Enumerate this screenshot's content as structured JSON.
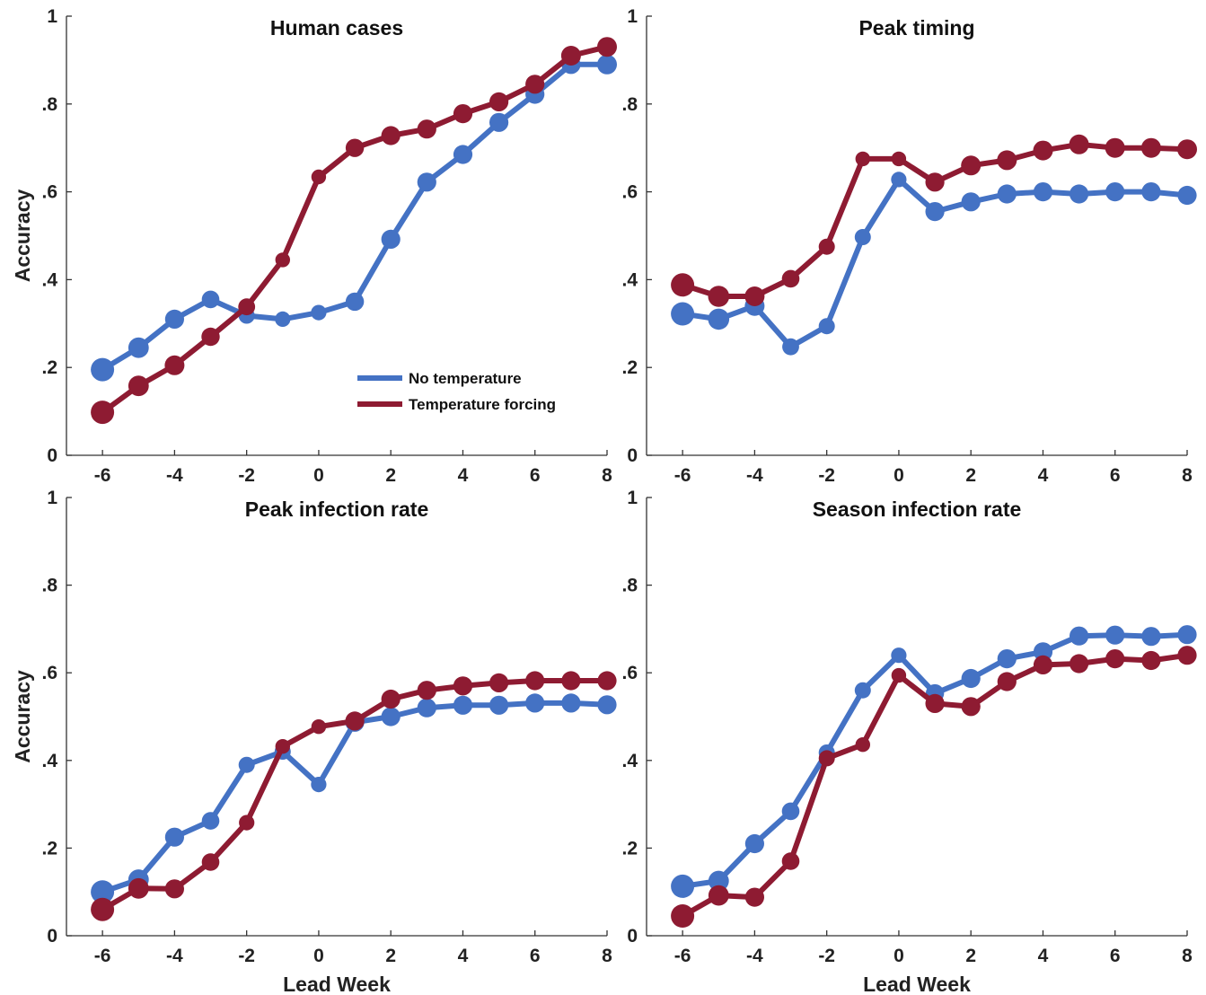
{
  "colors": {
    "no_temperature": "#4472C4",
    "temperature_forcing": "#8E1B32"
  },
  "chart_data": [
    {
      "type": "line",
      "title": "Human cases",
      "xlabel": "",
      "ylabel": "Accuracy",
      "x": [
        -6,
        -5,
        -4,
        -3,
        -2,
        -1,
        0,
        1,
        2,
        3,
        4,
        5,
        6,
        7,
        8
      ],
      "xlim": [
        -7,
        8
      ],
      "ylim": [
        0,
        1
      ],
      "xticks": [
        "-6",
        "-4",
        "-2",
        "0",
        "2",
        "4",
        "6",
        "8"
      ],
      "yticks": [
        "0",
        ".2",
        ".4",
        ".6",
        ".8",
        "1"
      ],
      "legend": "inside-lower-right",
      "series": [
        {
          "name": "No temperature",
          "color": "#4472C4",
          "values": [
            0.195,
            0.245,
            0.31,
            0.355,
            0.318,
            0.31,
            0.325,
            0.35,
            0.492,
            0.622,
            0.685,
            0.758,
            0.822,
            0.89,
            0.89
          ],
          "sizes": [
            1.0,
            0.8,
            0.7,
            0.6,
            0.5,
            0.45,
            0.45,
            0.65,
            0.7,
            0.7,
            0.7,
            0.7,
            0.7,
            0.7,
            0.75
          ]
        },
        {
          "name": "Temperature forcing",
          "color": "#8E1B32",
          "values": [
            0.098,
            0.158,
            0.205,
            0.27,
            0.338,
            0.445,
            0.634,
            0.7,
            0.728,
            0.743,
            0.778,
            0.805,
            0.845,
            0.91,
            0.93
          ],
          "sizes": [
            1.0,
            0.8,
            0.75,
            0.65,
            0.55,
            0.4,
            0.4,
            0.65,
            0.7,
            0.7,
            0.7,
            0.7,
            0.7,
            0.75,
            0.75
          ]
        }
      ]
    },
    {
      "type": "line",
      "title": "Peak timing",
      "xlabel": "",
      "ylabel": "",
      "x": [
        -6,
        -5,
        -4,
        -3,
        -2,
        -1,
        0,
        1,
        2,
        3,
        4,
        5,
        6,
        7,
        8
      ],
      "xlim": [
        -7,
        8
      ],
      "ylim": [
        0,
        1
      ],
      "xticks": [
        "-6",
        "-4",
        "-2",
        "0",
        "2",
        "4",
        "6",
        "8"
      ],
      "yticks": [
        "0",
        ".2",
        ".4",
        ".6",
        ".8",
        "1"
      ],
      "series": [
        {
          "name": "No temperature",
          "color": "#4472C4",
          "values": [
            0.322,
            0.31,
            0.34,
            0.247,
            0.294,
            0.497,
            0.628,
            0.555,
            0.577,
            0.595,
            0.6,
            0.595,
            0.6,
            0.6,
            0.592
          ],
          "sizes": [
            1.0,
            0.85,
            0.75,
            0.55,
            0.5,
            0.5,
            0.45,
            0.7,
            0.7,
            0.7,
            0.7,
            0.7,
            0.7,
            0.7,
            0.7
          ]
        },
        {
          "name": "Temperature forcing",
          "color": "#8E1B32",
          "values": [
            0.388,
            0.362,
            0.362,
            0.402,
            0.475,
            0.675,
            0.675,
            0.622,
            0.66,
            0.672,
            0.694,
            0.708,
            0.7,
            0.7,
            0.697
          ],
          "sizes": [
            1.0,
            0.85,
            0.75,
            0.6,
            0.5,
            0.4,
            0.4,
            0.7,
            0.75,
            0.75,
            0.75,
            0.75,
            0.75,
            0.75,
            0.75
          ]
        }
      ]
    },
    {
      "type": "line",
      "title": "Peak infection rate",
      "xlabel": "Lead Week",
      "ylabel": "Accuracy",
      "x": [
        -6,
        -5,
        -4,
        -3,
        -2,
        -1,
        0,
        1,
        2,
        3,
        4,
        5,
        6,
        7,
        8
      ],
      "xlim": [
        -7,
        8
      ],
      "ylim": [
        0,
        1
      ],
      "xticks": [
        "-6",
        "-4",
        "-2",
        "0",
        "2",
        "4",
        "6",
        "8"
      ],
      "yticks": [
        "0",
        ".2",
        ".4",
        ".6",
        ".8",
        "1"
      ],
      "series": [
        {
          "name": "No temperature",
          "color": "#4472C4",
          "values": [
            0.1,
            0.128,
            0.225,
            0.262,
            0.39,
            0.42,
            0.345,
            0.487,
            0.5,
            0.52,
            0.526,
            0.526,
            0.531,
            0.531,
            0.527
          ],
          "sizes": [
            1.0,
            0.8,
            0.7,
            0.6,
            0.5,
            0.5,
            0.45,
            0.7,
            0.7,
            0.7,
            0.7,
            0.7,
            0.7,
            0.7,
            0.7
          ]
        },
        {
          "name": "Temperature forcing",
          "color": "#8E1B32",
          "values": [
            0.06,
            0.108,
            0.107,
            0.168,
            0.258,
            0.432,
            0.477,
            0.49,
            0.54,
            0.56,
            0.57,
            0.577,
            0.582,
            0.582,
            0.582
          ],
          "sizes": [
            1.0,
            0.8,
            0.7,
            0.6,
            0.45,
            0.4,
            0.4,
            0.7,
            0.7,
            0.7,
            0.7,
            0.7,
            0.7,
            0.7,
            0.7
          ]
        }
      ]
    },
    {
      "type": "line",
      "title": "Season infection rate",
      "xlabel": "Lead Week",
      "ylabel": "",
      "x": [
        -6,
        -5,
        -4,
        -3,
        -2,
        -1,
        0,
        1,
        2,
        3,
        4,
        5,
        6,
        7,
        8
      ],
      "xlim": [
        -7,
        8
      ],
      "ylim": [
        0,
        1
      ],
      "xticks": [
        "-6",
        "-4",
        "-2",
        "0",
        "2",
        "4",
        "6",
        "8"
      ],
      "yticks": [
        "0",
        ".2",
        ".4",
        ".6",
        ".8",
        "1"
      ],
      "series": [
        {
          "name": "No temperature",
          "color": "#4472C4",
          "values": [
            0.113,
            0.125,
            0.21,
            0.284,
            0.418,
            0.56,
            0.64,
            0.553,
            0.587,
            0.632,
            0.648,
            0.684,
            0.686,
            0.683,
            0.687
          ],
          "sizes": [
            1.0,
            0.8,
            0.7,
            0.6,
            0.5,
            0.5,
            0.45,
            0.65,
            0.7,
            0.7,
            0.7,
            0.7,
            0.7,
            0.7,
            0.7
          ]
        },
        {
          "name": "Temperature forcing",
          "color": "#8E1B32",
          "values": [
            0.045,
            0.092,
            0.088,
            0.17,
            0.405,
            0.436,
            0.594,
            0.53,
            0.523,
            0.58,
            0.618,
            0.621,
            0.632,
            0.628,
            0.64
          ],
          "sizes": [
            1.0,
            0.8,
            0.7,
            0.6,
            0.5,
            0.4,
            0.4,
            0.7,
            0.7,
            0.7,
            0.7,
            0.7,
            0.7,
            0.7,
            0.7
          ]
        }
      ]
    }
  ]
}
